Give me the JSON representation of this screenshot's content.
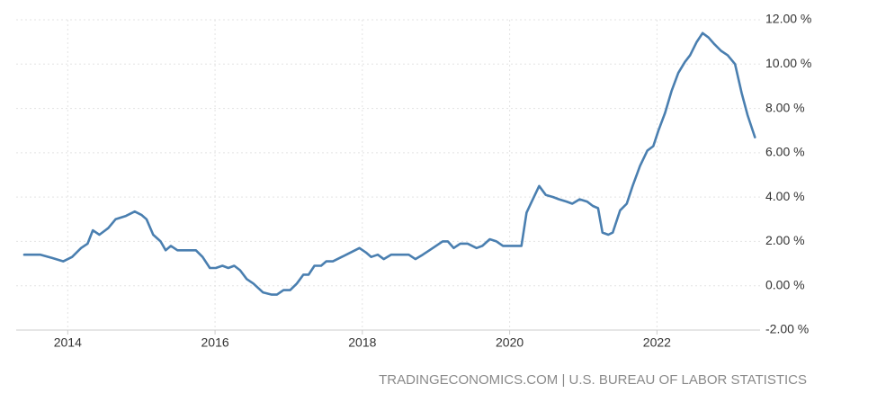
{
  "chart_data": {
    "type": "line",
    "x": [
      2013.41,
      2013.63,
      2013.79,
      2013.94,
      2014.06,
      2014.18,
      2014.27,
      2014.34,
      2014.43,
      2014.55,
      2014.65,
      2014.79,
      2014.91,
      2015.0,
      2015.07,
      2015.16,
      2015.26,
      2015.33,
      2015.4,
      2015.49,
      2015.65,
      2015.74,
      2015.83,
      2015.93,
      2016.01,
      2016.1,
      2016.18,
      2016.26,
      2016.34,
      2016.43,
      2016.52,
      2016.65,
      2016.77,
      2016.84,
      2016.93,
      2017.02,
      2017.11,
      2017.2,
      2017.27,
      2017.35,
      2017.44,
      2017.51,
      2017.6,
      2017.72,
      2017.84,
      2017.96,
      2018.05,
      2018.12,
      2018.21,
      2018.29,
      2018.39,
      2018.51,
      2018.63,
      2018.72,
      2018.82,
      2018.91,
      2019.0,
      2019.09,
      2019.16,
      2019.24,
      2019.33,
      2019.43,
      2019.55,
      2019.63,
      2019.73,
      2019.82,
      2019.91,
      2020.0,
      2020.1,
      2020.16,
      2020.23,
      2020.3,
      2020.4,
      2020.49,
      2020.59,
      2020.67,
      2020.77,
      2020.85,
      2020.95,
      2021.05,
      2021.13,
      2021.2,
      2021.26,
      2021.34,
      2021.4,
      2021.5,
      2021.59,
      2021.67,
      2021.77,
      2021.87,
      2021.95,
      2022.02,
      2022.11,
      2022.2,
      2022.29,
      2022.38,
      2022.45,
      2022.54,
      2022.62,
      2022.7,
      2022.78,
      2022.87,
      2022.96,
      2023.06,
      2023.15,
      2023.23,
      2023.33
    ],
    "values": [
      1.4,
      1.4,
      1.25,
      1.1,
      1.3,
      1.7,
      1.9,
      2.5,
      2.3,
      2.6,
      3.0,
      3.15,
      3.35,
      3.2,
      3.0,
      2.3,
      2.0,
      1.6,
      1.8,
      1.6,
      1.6,
      1.6,
      1.3,
      0.8,
      0.8,
      0.9,
      0.8,
      0.9,
      0.7,
      0.3,
      0.1,
      -0.3,
      -0.4,
      -0.4,
      -0.2,
      -0.2,
      0.1,
      0.5,
      0.5,
      0.9,
      0.9,
      1.1,
      1.1,
      1.3,
      1.5,
      1.7,
      1.5,
      1.3,
      1.4,
      1.2,
      1.4,
      1.4,
      1.4,
      1.2,
      1.4,
      1.6,
      1.8,
      2.0,
      2.0,
      1.7,
      1.9,
      1.9,
      1.7,
      1.8,
      2.1,
      2.0,
      1.8,
      1.8,
      1.8,
      1.8,
      3.3,
      3.8,
      4.5,
      4.1,
      4.0,
      3.9,
      3.8,
      3.7,
      3.9,
      3.8,
      3.6,
      3.5,
      2.4,
      2.3,
      2.4,
      3.4,
      3.7,
      4.5,
      5.4,
      6.1,
      6.3,
      7.0,
      7.8,
      8.8,
      9.6,
      10.1,
      10.4,
      11.0,
      11.4,
      11.2,
      10.9,
      10.6,
      10.4,
      10.0,
      8.7,
      7.7,
      6.7
    ],
    "color": "#4a7fb0",
    "xlim": [
      2013.3,
      2023.4
    ],
    "xticks": [
      2014,
      2016,
      2018,
      2020,
      2022
    ],
    "ylim": [
      -2,
      12
    ],
    "yticks": [
      {
        "value": -2,
        "label": "-2.00 %"
      },
      {
        "value": 0,
        "label": "0.00 %"
      },
      {
        "value": 2,
        "label": "2.00 %"
      },
      {
        "value": 4,
        "label": "4.00 %"
      },
      {
        "value": 6,
        "label": "6.00 %"
      },
      {
        "value": 8,
        "label": "8.00 %"
      },
      {
        "value": 10,
        "label": "10.00 %"
      },
      {
        "value": 12,
        "label": "12.00 %"
      }
    ],
    "grid": true,
    "source": "TRADINGECONOMICS.COM | U.S. BUREAU OF LABOR STATISTICS"
  }
}
